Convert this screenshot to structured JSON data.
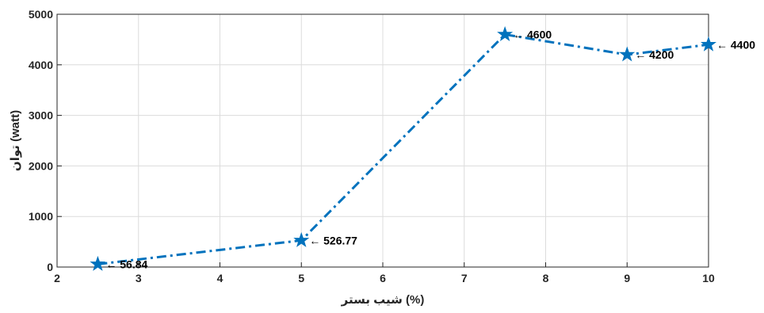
{
  "chart_data": {
    "type": "line",
    "xlabel": "شیب بستر (%)",
    "ylabel": "توان (watt)",
    "xlim": [
      2,
      10
    ],
    "ylim": [
      0,
      5000
    ],
    "xticks": [
      "2",
      "3",
      "4",
      "5",
      "6",
      "7",
      "8",
      "9",
      "10"
    ],
    "yticks": [
      "0",
      "1000",
      "2000",
      "3000",
      "4000",
      "5000"
    ],
    "grid": true,
    "series": [
      {
        "x": [
          2.5,
          5,
          7.5,
          9,
          10
        ],
        "y": [
          56.84,
          526.77,
          4600,
          4200,
          4400
        ],
        "color": "#0072BD",
        "line_style": "dash-dot",
        "marker": "star"
      }
    ],
    "annotations": [
      {
        "text": "← 56.84",
        "x": 2.5,
        "y": 56.84
      },
      {
        "text": "← 526.77",
        "x": 5,
        "y": 526.77
      },
      {
        "text": "← 4600",
        "x": 7.5,
        "y": 4600
      },
      {
        "text": "← 4200",
        "x": 9,
        "y": 4200
      },
      {
        "text": "← 4400",
        "x": 10,
        "y": 4400
      }
    ]
  }
}
